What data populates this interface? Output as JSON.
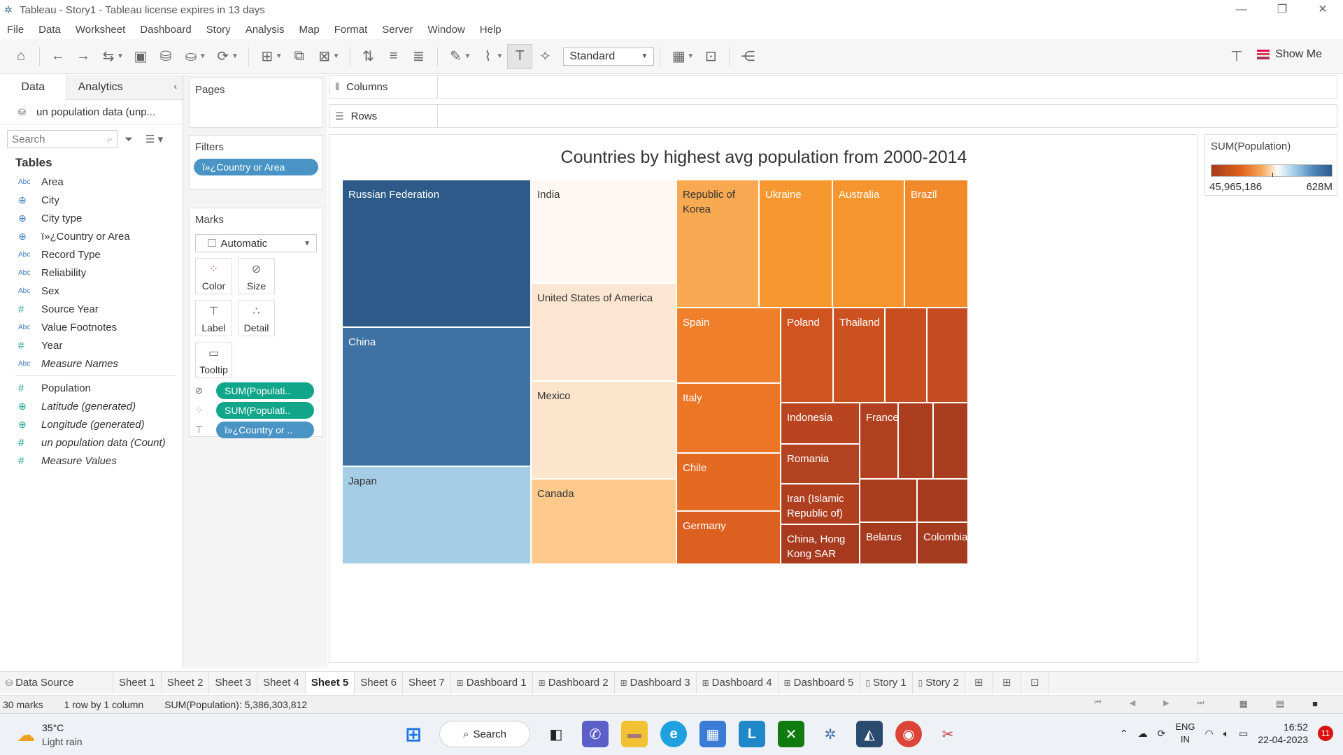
{
  "window": {
    "title": "Tableau - Story1 - Tableau license expires in 13 days",
    "controls": [
      "—",
      "❐",
      "✕"
    ]
  },
  "menu": [
    "File",
    "Data",
    "Worksheet",
    "Dashboard",
    "Story",
    "Analysis",
    "Map",
    "Format",
    "Server",
    "Window",
    "Help"
  ],
  "toolbar": {
    "view_select": "Standard",
    "show_me": "Show Me"
  },
  "data_pane": {
    "tabs": [
      "Data",
      "Analytics"
    ],
    "datasource": "un population data (unp...",
    "search_placeholder": "Search",
    "tables_heading": "Tables",
    "dimensions": [
      {
        "type": "Abc",
        "name": "Area"
      },
      {
        "type": "geo",
        "name": "City"
      },
      {
        "type": "geo",
        "name": "City type"
      },
      {
        "type": "geo",
        "name": "ï»¿Country or Area"
      },
      {
        "type": "Abc",
        "name": "Record Type"
      },
      {
        "type": "Abc",
        "name": "Reliability"
      },
      {
        "type": "Abc",
        "name": "Sex"
      },
      {
        "type": "#",
        "name": "Source Year"
      },
      {
        "type": "Abc",
        "name": "Value Footnotes"
      },
      {
        "type": "#",
        "name": "Year"
      },
      {
        "type": "Abc",
        "name": "Measure Names"
      }
    ],
    "measures": [
      {
        "type": "#",
        "name": "Population"
      },
      {
        "type": "geo",
        "name": "Latitude (generated)"
      },
      {
        "type": "geo",
        "name": "Longitude (generated)"
      },
      {
        "type": "#",
        "name": "un population data (Count)"
      },
      {
        "type": "#",
        "name": "Measure Values"
      }
    ]
  },
  "cards": {
    "pages": "Pages",
    "filters": "Filters",
    "filter_pill": "ï»¿Country or Area",
    "marks": "Marks",
    "mark_type": "Automatic",
    "mark_buttons": [
      "Color",
      "Size",
      "Label",
      "Detail",
      "Tooltip"
    ],
    "mark_pills": [
      "SUM(Populati..",
      "SUM(Populati..",
      "ï»¿Country or .."
    ]
  },
  "shelves": {
    "columns": "Columns",
    "rows": "Rows"
  },
  "viz": {
    "title": "Countries by highest avg population from 2000-2014",
    "cells": [
      {
        "label": "Russian Federation",
        "color": "#2d5a89",
        "text": "#ffffff"
      },
      {
        "label": "China",
        "color": "#3e72a3",
        "text": "#ffffff"
      },
      {
        "label": "Japan",
        "color": "#a6cde6",
        "text": "#333333"
      },
      {
        "label": "India",
        "color": "#fff8f2",
        "text": "#333333"
      },
      {
        "label": "United States of America",
        "color": "#fde6d1",
        "text": "#333333"
      },
      {
        "label": "Mexico",
        "color": "#fde4cd",
        "text": "#333333"
      },
      {
        "label": "Canada",
        "color": "#fdc98d",
        "text": "#333333"
      },
      {
        "label": "Republic of Korea",
        "color": "#f9a951",
        "text": "#333333"
      },
      {
        "label": "Ukraine",
        "color": "#f7972f",
        "text": "#ffffff"
      },
      {
        "label": "Australia",
        "color": "#f6952d",
        "text": "#ffffff"
      },
      {
        "label": "Brazil",
        "color": "#f38a2a",
        "text": "#ffffff"
      },
      {
        "label": "Spain",
        "color": "#ef7f2a",
        "text": "#ffffff"
      },
      {
        "label": "Italy",
        "color": "#ed7526",
        "text": "#ffffff"
      },
      {
        "label": "Chile",
        "color": "#e46a22",
        "text": "#ffffff"
      },
      {
        "label": "Germany",
        "color": "#dc6020",
        "text": "#ffffff"
      },
      {
        "label": "Poland",
        "color": "#cf5420",
        "text": "#ffffff"
      },
      {
        "label": "Thailand",
        "color": "#cc5120",
        "text": "#ffffff"
      },
      {
        "label": "",
        "color": "#c84e20",
        "text": "#ffffff"
      },
      {
        "label": "",
        "color": "#c54c20",
        "text": "#ffffff"
      },
      {
        "label": "Indonesia",
        "color": "#b84520",
        "text": "#ffffff"
      },
      {
        "label": "Romania",
        "color": "#b34220",
        "text": "#ffffff"
      },
      {
        "label": "Iran (Islamic Republic of)",
        "color": "#b03f20",
        "text": "#ffffff"
      },
      {
        "label": "China, Hong Kong SAR",
        "color": "#a83b1f",
        "text": "#ffffff"
      },
      {
        "label": "France",
        "color": "#b04020",
        "text": "#ffffff"
      },
      {
        "label": "",
        "color": "#ac3e20",
        "text": "#ffffff"
      },
      {
        "label": "",
        "color": "#aa3d20",
        "text": "#ffffff"
      },
      {
        "label": "",
        "color": "#a93c1f",
        "text": "#ffffff"
      },
      {
        "label": "",
        "color": "#a73b1f",
        "text": "#ffffff"
      },
      {
        "label": "Belarus",
        "color": "#a63a1e",
        "text": "#ffffff"
      },
      {
        "label": "Colombia",
        "color": "#a43a1e",
        "text": "#ffffff"
      }
    ]
  },
  "legend": {
    "title": "SUM(Population)",
    "min": "45,965,186",
    "max": "628M"
  },
  "sheet_tabs": [
    {
      "label": "Data Source",
      "kind": "ds"
    },
    {
      "label": "Sheet 1",
      "kind": "sheet"
    },
    {
      "label": "Sheet 2",
      "kind": "sheet"
    },
    {
      "label": "Sheet 3",
      "kind": "sheet"
    },
    {
      "label": "Sheet 4",
      "kind": "sheet"
    },
    {
      "label": "Sheet 5",
      "kind": "sheet",
      "active": true
    },
    {
      "label": "Sheet 6",
      "kind": "sheet"
    },
    {
      "label": "Sheet 7",
      "kind": "sheet"
    },
    {
      "label": "Dashboard 1",
      "kind": "dash"
    },
    {
      "label": "Dashboard 2",
      "kind": "dash"
    },
    {
      "label": "Dashboard 3",
      "kind": "dash"
    },
    {
      "label": "Dashboard 4",
      "kind": "dash"
    },
    {
      "label": "Dashboard 5",
      "kind": "dash"
    },
    {
      "label": "Story 1",
      "kind": "story"
    },
    {
      "label": "Story 2",
      "kind": "story"
    }
  ],
  "status": {
    "marks": "30 marks",
    "layout": "1 row by 1 column",
    "sum": "SUM(Population): 5,386,303,812"
  },
  "taskbar": {
    "temp": "35°C",
    "weather": "Light rain",
    "search": "Search",
    "lang1": "ENG",
    "lang2": "IN",
    "time": "16:52",
    "date": "22-04-2023",
    "notifications": "11"
  }
}
